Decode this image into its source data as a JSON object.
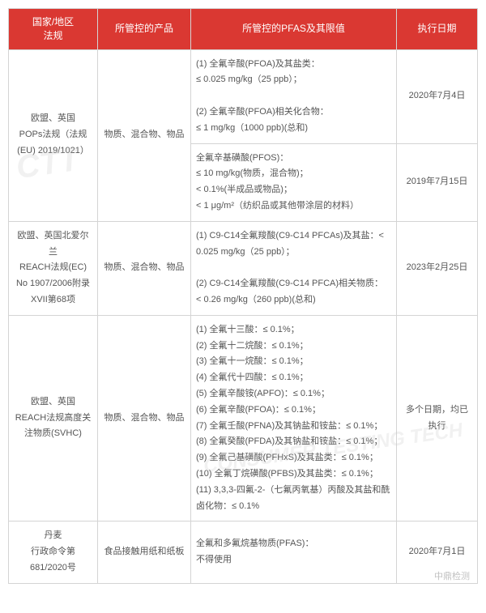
{
  "headers": {
    "region": "国家/地区\n法规",
    "product": "所管控的产品",
    "limits": "所管控的PFAS及其限值",
    "date": "执行日期"
  },
  "rows": {
    "r1": {
      "region": "欧盟、英国\nPOPs法规（法规(EU) 2019/1021）",
      "product": "物质、混合物、物品",
      "limits_a": "(1) 全氟辛酸(PFOA)及其盐类：\n≤ 0.025 mg/kg（25 ppb）；\n\n(2) 全氟辛酸(PFOA)相关化合物：\n≤ 1 mg/kg（1000 ppb)(总和)",
      "date_a": "2020年7月4日",
      "limits_b": "全氟辛基磺酸(PFOS)：\n≤ 10 mg/kg(物质，混合物)；\n< 0.1%(半成品或物品)；\n< 1 μg/m²（纺织品或其他带涂层的材料）",
      "date_b": "2019年7月15日"
    },
    "r2": {
      "region": "欧盟、英国北爱尔兰\nREACH法规(EC) No 1907/2006附录XVII第68项",
      "product": "物质、混合物、物品",
      "limits": "(1) C9-C14全氟羧酸(C9-C14 PFCAs)及其盐：< 0.025 mg/kg（25 ppb）；\n\n(2) C9-C14全氟羧酸(C9-C14 PFCA)相关物质：\n< 0.26 mg/kg（260 ppb)(总和)",
      "date": "2023年2月25日"
    },
    "r3": {
      "region": "欧盟、英国\nREACH法规高度关注物质(SVHC)",
      "product": "物质、混合物、物品",
      "limits": "(1) 全氟十三酸：≤ 0.1%；\n(2) 全氟十二烷酸：≤ 0.1%；\n(3) 全氟十一烷酸：≤ 0.1%；\n(4) 全氟代十四酸：≤ 0.1%；\n(5) 全氟辛酸铵(APFO)：≤ 0.1%；\n(6) 全氟辛酸(PFOA)：≤ 0.1%；\n(7) 全氟壬酸(PFNA)及其钠盐和铵盐：≤ 0.1%；\n(8) 全氟癸酸(PFDA)及其钠盐和铵盐：≤ 0.1%；\n(9) 全氟己基磺酸(PFHxS)及其盐类：≤ 0.1%；\n(10) 全氟丁烷磺酸(PFBS)及其盐类：≤ 0.1%；\n(11) 3,3,3-四氟-2-（七氟丙氧基）丙酸及其盐和酰卤化物：≤ 0.1%",
      "date": "多个日期，均已执行"
    },
    "r4": {
      "region": "丹麦\n行政命令第681/2020号",
      "product": "食品接触用纸和纸板",
      "limits": "全氟和多氟烷基物质(PFAS)：\n不得使用",
      "date": "2020年7月1日"
    }
  },
  "watermark": "CTT",
  "footer": "中鼎检测"
}
